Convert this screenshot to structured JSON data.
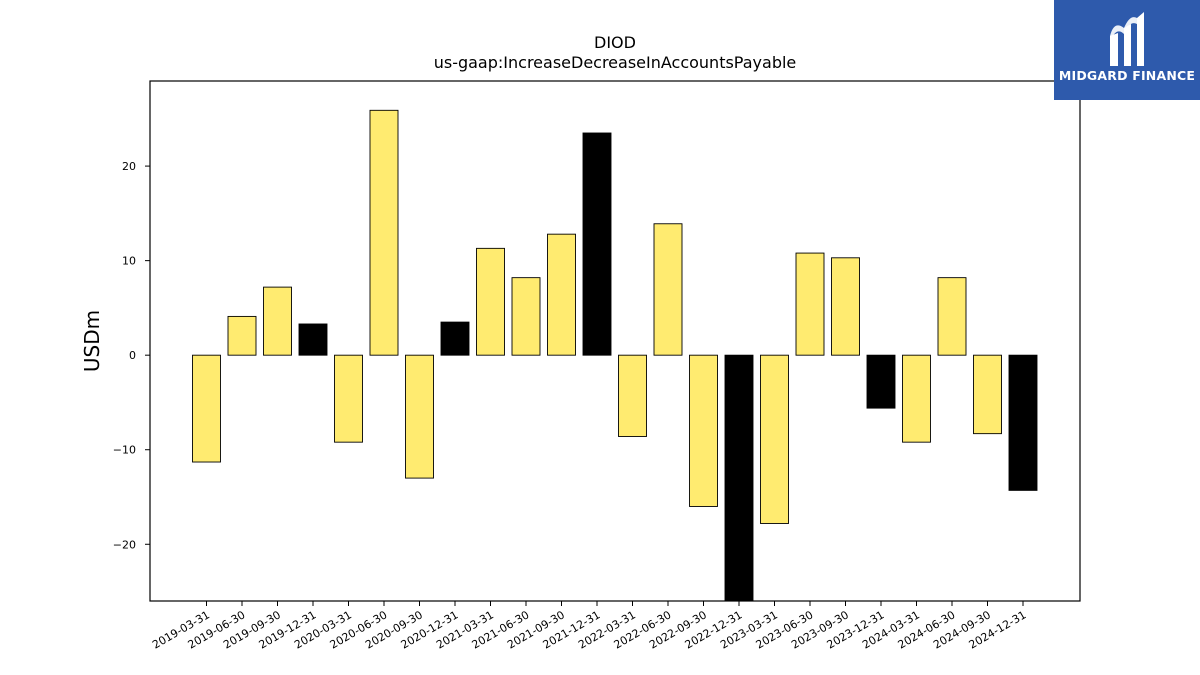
{
  "brand": {
    "name": "MIDGARD FINANCE",
    "background_color": "#2e5aac",
    "text_color": "#ffffff",
    "icon": "midgard-m-logo-icon"
  },
  "chart_data": {
    "type": "bar",
    "title": "DIOD",
    "subtitle": "us-gaap:IncreaseDecreaseInAccountsPayable",
    "xlabel": "",
    "ylabel": "USDm",
    "ylim": [
      -26,
      29
    ],
    "yticks": [
      -20,
      -10,
      0,
      10,
      20
    ],
    "ytick_labels": [
      "−20",
      "−10",
      "0",
      "10",
      "20"
    ],
    "grid": false,
    "legend": "none",
    "colors": {
      "quarter": "#ffeb70",
      "year_end": "#000000",
      "edge": "#000000"
    },
    "categories": [
      "2019-03-31",
      "2019-06-30",
      "2019-09-30",
      "2019-12-31",
      "2020-03-31",
      "2020-06-30",
      "2020-09-30",
      "2020-12-31",
      "2021-03-31",
      "2021-06-30",
      "2021-09-30",
      "2021-12-31",
      "2022-03-31",
      "2022-06-30",
      "2022-09-30",
      "2022-12-31",
      "2023-03-31",
      "2023-06-30",
      "2023-09-30",
      "2023-12-31",
      "2024-03-31",
      "2024-06-30",
      "2024-09-30",
      "2024-12-31"
    ],
    "values": [
      -11.3,
      4.1,
      7.2,
      3.3,
      -9.2,
      25.9,
      -13.0,
      3.5,
      11.3,
      8.2,
      12.8,
      23.5,
      -8.6,
      13.9,
      -16.0,
      -26.0,
      -17.8,
      10.8,
      10.3,
      -5.6,
      -9.2,
      8.2,
      -8.3,
      -14.3
    ],
    "year_end": [
      false,
      false,
      false,
      true,
      false,
      false,
      false,
      true,
      false,
      false,
      false,
      true,
      false,
      false,
      false,
      true,
      false,
      false,
      false,
      true,
      false,
      false,
      false,
      true
    ]
  }
}
